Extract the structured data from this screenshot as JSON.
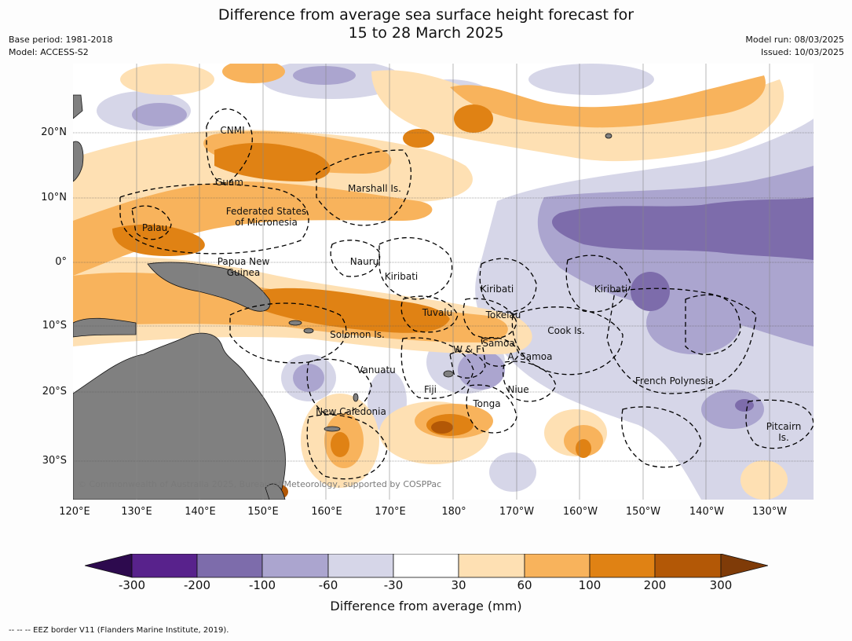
{
  "title_line1": "Difference from average sea surface height forecast for",
  "title_line2": "15 to 28 March 2025",
  "base_period": "Base period: 1981-2018",
  "model": "Model: ACCESS-S2",
  "model_run": "Model run: 08/03/2025",
  "issued": "Issued: 10/03/2025",
  "lat_labels": [
    "20°N",
    "10°N",
    "0°",
    "10°S",
    "20°S",
    "30°S"
  ],
  "lon_labels": [
    "120°E",
    "130°E",
    "140°E",
    "150°E",
    "160°E",
    "170°E",
    "180°",
    "170°W",
    "160°W",
    "150°W",
    "140°W",
    "130°W"
  ],
  "regions": [
    "CNMI",
    "Guam",
    "Marshall Is.",
    "Federated States",
    "of Micronesia",
    "Palau",
    "Papua New",
    "Guinea",
    "Nauru",
    "Kiribati",
    "Kiribati",
    "Kiribati",
    "Tuvalu",
    "Tokelau",
    "Cook Is.",
    "Solomon Is.",
    "W & F",
    "Samoa",
    "A. Samoa",
    "Vanuatu",
    "Fiji",
    "Niue",
    "Tonga",
    "French Polynesia",
    "New Caledonia",
    "Pitcairn",
    "Is."
  ],
  "copyright": "© Commonwealth of Australia 2025, Bureau of Meteorology, supported by COSPPac",
  "colorbar": {
    "ticks": [
      "-300",
      "-200",
      "-100",
      "-60",
      "-30",
      "30",
      "60",
      "100",
      "200",
      "300"
    ],
    "colors": [
      "#2d0a4e",
      "#58228c",
      "#7d6cab",
      "#aba5cf",
      "#d6d6e8",
      "#ffffff",
      "#fee0b3",
      "#f8b35c",
      "#e08214",
      "#b35806",
      "#7f3b08"
    ],
    "label": "Difference from average (mm)"
  },
  "footnote": "--  --  -- EEZ border V11 (Flanders Marine Institute, 2019)."
}
